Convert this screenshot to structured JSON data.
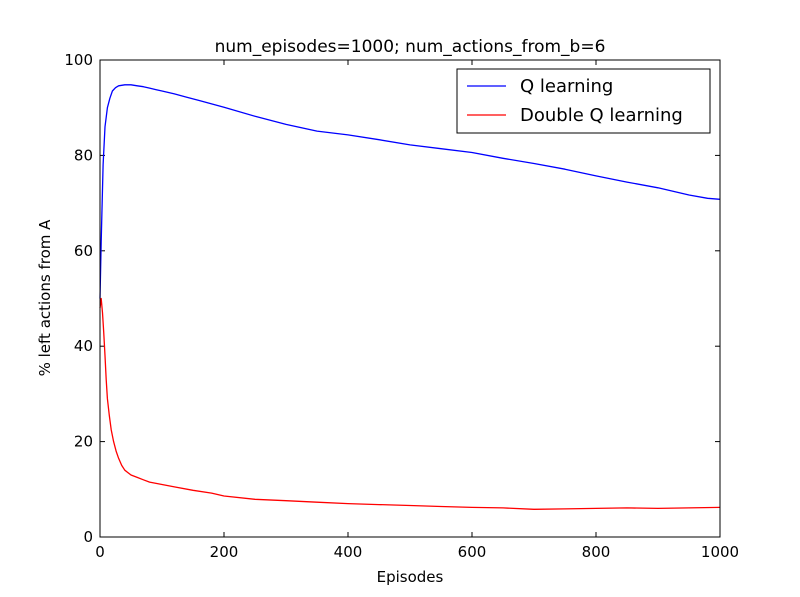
{
  "chart_data": {
    "type": "line",
    "title": "num_episodes=1000; num_actions_from_b=6",
    "xlabel": "Episodes",
    "ylabel": "% left actions from A",
    "xlim": [
      0,
      1000
    ],
    "ylim": [
      0,
      100
    ],
    "x_ticks": [
      "0",
      "200",
      "400",
      "600",
      "800",
      "1000"
    ],
    "y_ticks": [
      "0",
      "20",
      "40",
      "60",
      "80",
      "100"
    ],
    "grid": false,
    "legend_position": "top-right",
    "series": [
      {
        "name": "Q learning",
        "color": "#0000ff",
        "x": [
          0,
          2,
          5,
          8,
          12,
          16,
          20,
          25,
          30,
          40,
          50,
          60,
          70,
          80,
          90,
          100,
          120,
          140,
          160,
          180,
          200,
          250,
          300,
          350,
          400,
          450,
          500,
          550,
          600,
          650,
          700,
          750,
          800,
          850,
          900,
          950,
          980,
          1000
        ],
        "values": [
          50,
          62,
          78,
          86,
          90,
          92,
          93.5,
          94.2,
          94.6,
          94.8,
          94.8,
          94.6,
          94.4,
          94.1,
          93.8,
          93.5,
          92.9,
          92.2,
          91.5,
          90.8,
          90.1,
          88.2,
          86.5,
          85.1,
          84.3,
          83.3,
          82.2,
          81.4,
          80.6,
          79.4,
          78.3,
          77.1,
          75.7,
          74.4,
          73.2,
          71.7,
          71.0,
          70.8
        ]
      },
      {
        "name": "Double Q learning",
        "color": "#ff0000",
        "x": [
          0,
          2,
          4,
          6,
          8,
          10,
          12,
          15,
          18,
          22,
          26,
          30,
          35,
          40,
          50,
          60,
          70,
          80,
          100,
          120,
          150,
          180,
          200,
          250,
          300,
          350,
          400,
          450,
          500,
          550,
          600,
          650,
          700,
          750,
          800,
          850,
          900,
          950,
          1000
        ],
        "values": [
          48,
          50,
          47,
          43,
          38,
          33,
          29,
          25.5,
          22.5,
          20,
          18,
          16.5,
          15,
          14,
          13,
          12.5,
          12,
          11.5,
          11,
          10.5,
          9.8,
          9.2,
          8.6,
          7.9,
          7.6,
          7.3,
          7.0,
          6.8,
          6.6,
          6.4,
          6.2,
          6.1,
          5.8,
          5.9,
          6.0,
          6.1,
          6.0,
          6.1,
          6.2
        ]
      }
    ]
  }
}
